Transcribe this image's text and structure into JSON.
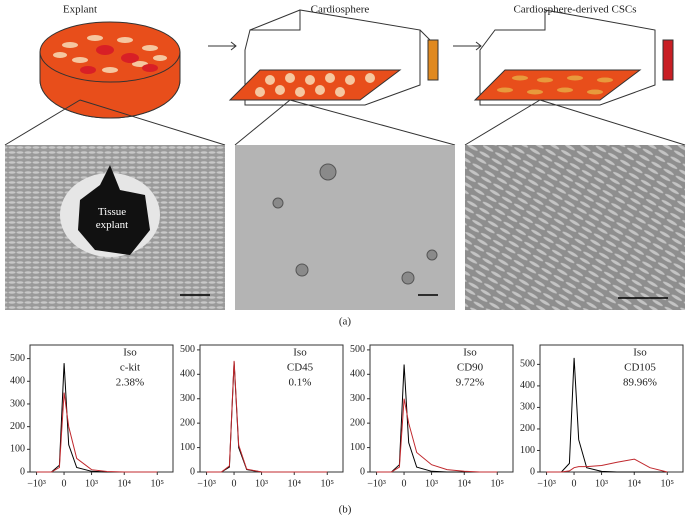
{
  "panel_a": {
    "labels": [
      "Explant",
      "Cardiosphere",
      "Cardiosphere-derived CSCs"
    ],
    "tissue_label": "Tissue explant",
    "caption": "(a)"
  },
  "panel_b_caption": "(b)",
  "chart_data": [
    {
      "type": "line",
      "x": [
        -1000,
        -300,
        -100,
        0,
        100,
        300,
        1000,
        3000,
        10000,
        30000,
        100000
      ],
      "xscale": "asinh",
      "xlim": [
        -1600,
        300000
      ],
      "xticks": [
        {
          "value": -1000,
          "label": "−10³"
        },
        0,
        {
          "value": 1000,
          "label": "10³"
        },
        {
          "value": 10000,
          "label": "10⁴"
        },
        {
          "value": 100000,
          "label": "10⁵"
        }
      ],
      "ylim": [
        0,
        560
      ],
      "yticks": [
        0,
        100,
        200,
        300,
        400,
        500
      ],
      "annotation": "2.38%",
      "series": [
        {
          "name": "Iso",
          "color": "#000000",
          "values": [
            0,
            0,
            30,
            480,
            120,
            20,
            3,
            0,
            0,
            0,
            0
          ]
        },
        {
          "name": "c-kit",
          "color": "#c0282d",
          "values": [
            0,
            0,
            20,
            350,
            200,
            60,
            10,
            2,
            0,
            0,
            0
          ]
        }
      ]
    },
    {
      "type": "line",
      "x": [
        -1000,
        -300,
        -100,
        0,
        100,
        300,
        1000,
        3000,
        10000,
        30000,
        100000
      ],
      "xscale": "asinh",
      "xlim": [
        -1600,
        300000
      ],
      "xticks": [
        {
          "value": -1000,
          "label": "−10³"
        },
        0,
        {
          "value": 1000,
          "label": "10³"
        },
        {
          "value": 10000,
          "label": "10⁴"
        },
        {
          "value": 100000,
          "label": "10⁵"
        }
      ],
      "ylim": [
        0,
        520
      ],
      "yticks": [
        0,
        100,
        200,
        300,
        400,
        500
      ],
      "annotation": "0.1%",
      "series": [
        {
          "name": "Iso",
          "color": "#000000",
          "values": [
            0,
            0,
            20,
            450,
            100,
            10,
            0,
            0,
            0,
            0,
            0
          ]
        },
        {
          "name": "CD45",
          "color": "#c0282d",
          "values": [
            0,
            0,
            25,
            455,
            110,
            12,
            0,
            0,
            0,
            0,
            0
          ]
        }
      ]
    },
    {
      "type": "line",
      "x": [
        -1000,
        -300,
        -100,
        0,
        100,
        300,
        1000,
        3000,
        10000,
        30000,
        100000
      ],
      "xscale": "asinh",
      "xlim": [
        -1600,
        300000
      ],
      "xticks": [
        {
          "value": -1000,
          "label": "−10³"
        },
        0,
        {
          "value": 1000,
          "label": "10³"
        },
        {
          "value": 10000,
          "label": "10⁴"
        },
        {
          "value": 100000,
          "label": "10⁵"
        }
      ],
      "ylim": [
        0,
        520
      ],
      "yticks": [
        0,
        100,
        200,
        300,
        400,
        500
      ],
      "annotation": "9.72%",
      "series": [
        {
          "name": "Iso",
          "color": "#000000",
          "values": [
            0,
            0,
            30,
            440,
            120,
            20,
            3,
            0,
            0,
            0,
            0
          ]
        },
        {
          "name": "CD90",
          "color": "#c0282d",
          "values": [
            0,
            0,
            20,
            300,
            200,
            80,
            30,
            10,
            3,
            0,
            0
          ]
        }
      ]
    },
    {
      "type": "line",
      "x": [
        -1000,
        -300,
        -100,
        0,
        100,
        300,
        1000,
        3000,
        10000,
        30000,
        100000
      ],
      "xscale": "asinh",
      "xlim": [
        -1600,
        300000
      ],
      "xticks": [
        {
          "value": -1000,
          "label": "−10³"
        },
        0,
        {
          "value": 1000,
          "label": "10³"
        },
        {
          "value": 10000,
          "label": "10⁴"
        },
        {
          "value": 100000,
          "label": "10⁵"
        }
      ],
      "ylim": [
        0,
        590
      ],
      "yticks": [
        0,
        100,
        200,
        300,
        400,
        500
      ],
      "annotation": "89.96%",
      "series": [
        {
          "name": "Iso",
          "color": "#000000",
          "values": [
            0,
            0,
            40,
            530,
            150,
            20,
            3,
            0,
            0,
            0,
            0
          ]
        },
        {
          "name": "CD105",
          "color": "#c0282d",
          "values": [
            0,
            0,
            5,
            20,
            25,
            25,
            30,
            45,
            60,
            20,
            0
          ]
        }
      ]
    }
  ]
}
